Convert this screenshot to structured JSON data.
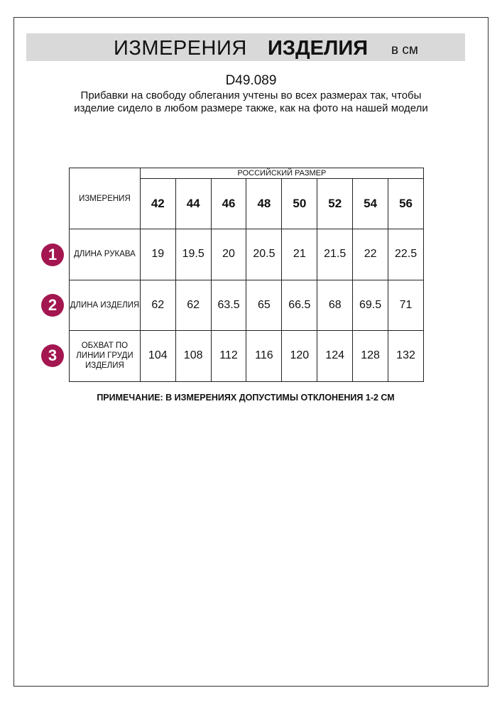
{
  "header": {
    "title_regular": "ИЗМЕРЕНИЯ",
    "title_bold": "ИЗДЕЛИЯ",
    "unit": "в см"
  },
  "product_code": "D49.089",
  "description": "Прибавки на свободу облегания учтены во всех размерах так, чтобы изделие сидело в любом размере также, как на фото на нашей модели",
  "table": {
    "measure_header": "ИЗМЕРЕНИЯ",
    "size_group_header": "РОССИЙСКИЙ РАЗМЕР",
    "sizes": [
      "42",
      "44",
      "46",
      "48",
      "50",
      "52",
      "54",
      "56"
    ],
    "rows": [
      {
        "num": "1",
        "label": "ДЛИНА РУКАВА",
        "values": [
          "19",
          "19.5",
          "20",
          "20.5",
          "21",
          "21.5",
          "22",
          "22.5"
        ]
      },
      {
        "num": "2",
        "label": "ДЛИНА ИЗДЕЛИЯ",
        "values": [
          "62",
          "62",
          "63.5",
          "65",
          "66.5",
          "68",
          "69.5",
          "71"
        ]
      },
      {
        "num": "3",
        "label": "ОБХВАТ ПО ЛИНИИ ГРУДИ ИЗДЕЛИЯ",
        "values": [
          "104",
          "108",
          "112",
          "116",
          "120",
          "124",
          "128",
          "132"
        ]
      }
    ]
  },
  "note": "ПРИМЕЧАНИЕ: В ИЗМЕРЕНИЯХ ДОПУСТИМЫ ОТКЛОНЕНИЯ 1-2 СМ",
  "colors": {
    "badge": "#a3164f",
    "banner": "#d9d9d9"
  }
}
